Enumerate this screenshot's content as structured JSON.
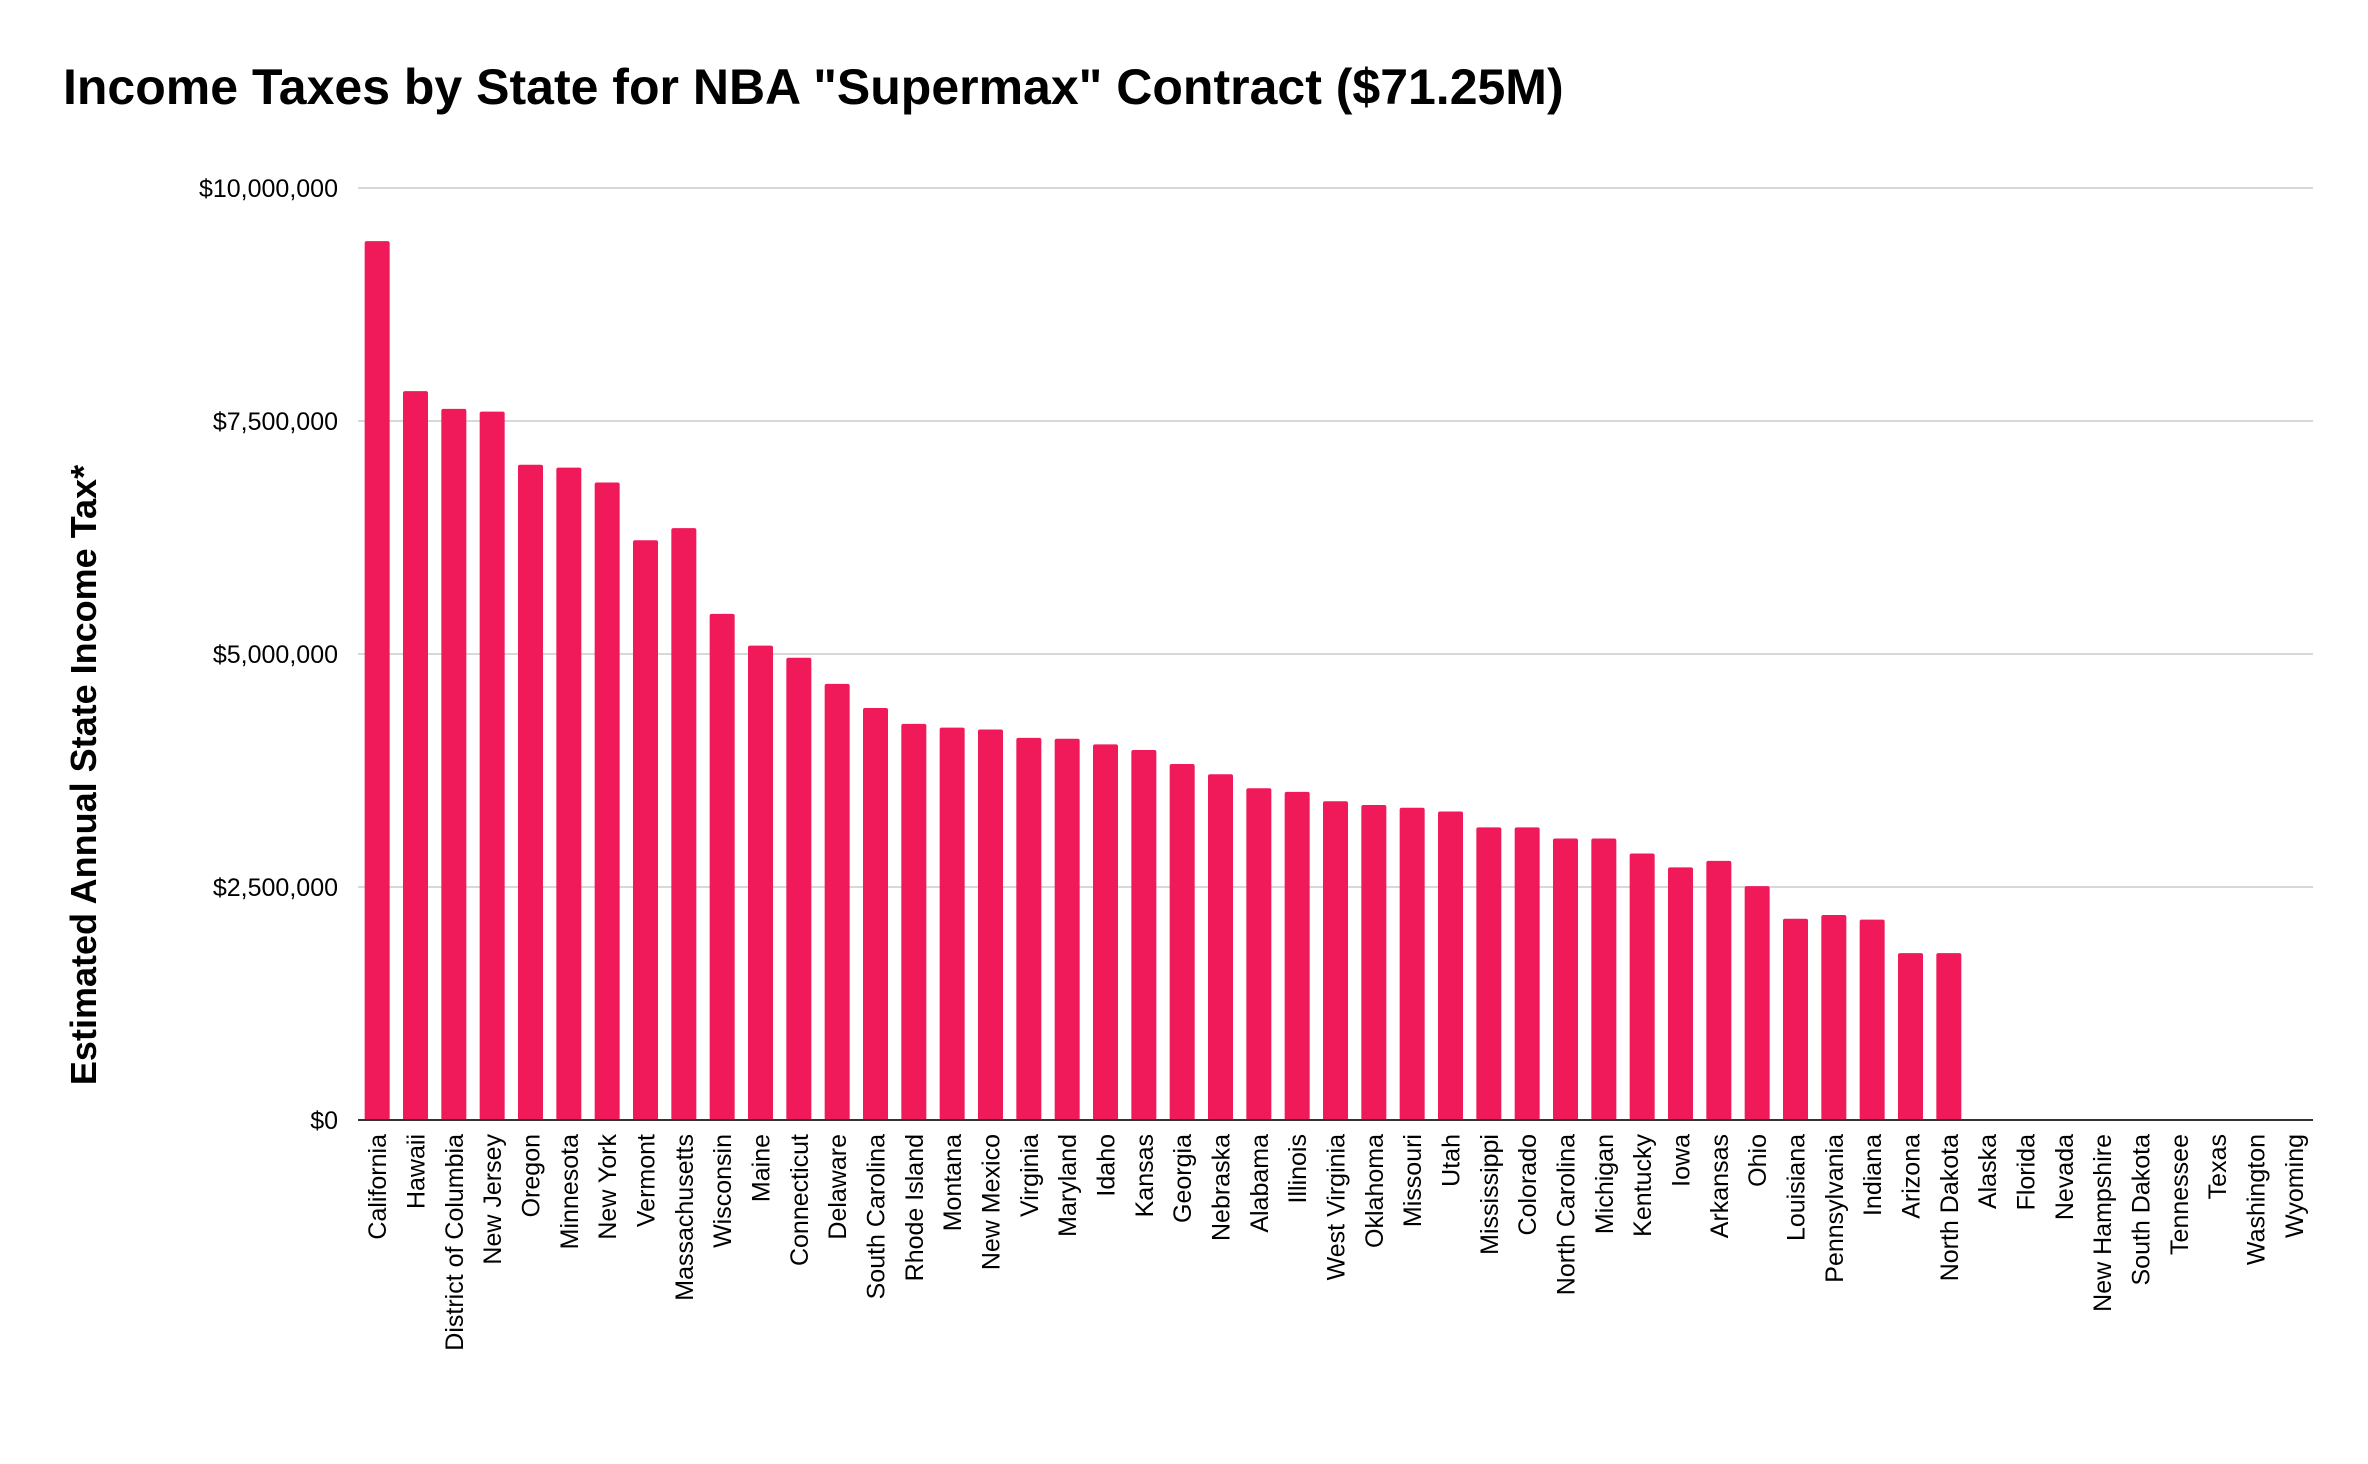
{
  "chart_data": {
    "type": "bar",
    "title": "Income Taxes by State for NBA \"Supermax\" Contract ($71.25M)",
    "xlabel": "",
    "ylabel": "Estimated Annual State Income Tax*",
    "ylim": [
      0,
      10000000
    ],
    "yticks": [
      0,
      2500000,
      5000000,
      7500000,
      10000000
    ],
    "ytick_labels": [
      "$0",
      "$2,500,000",
      "$5,000,000",
      "$7,500,000",
      "$10,000,000"
    ],
    "grid": true,
    "legend": "none",
    "bar_color": "#f0195a",
    "categories": [
      "California",
      "Hawaii",
      "District of Columbia",
      "New Jersey",
      "Oregon",
      "Minnesota",
      "New York",
      "Vermont",
      "Massachusetts",
      "Wisconsin",
      "Maine",
      "Connecticut",
      "Delaware",
      "South Carolina",
      "Rhode Island",
      "Montana",
      "New Mexico",
      "Virginia",
      "Maryland",
      "Idaho",
      "Kansas",
      "Georgia",
      "Nebraska",
      "Alabama",
      "Illinois",
      "West Virginia",
      "Oklahoma",
      "Missouri",
      "Utah",
      "Mississippi",
      "Colorado",
      "North Carolina",
      "Michigan",
      "Kentucky",
      "Iowa",
      "Arkansas",
      "Ohio",
      "Louisiana",
      "Pennsylvania",
      "Indiana",
      "Arizona",
      "North Dakota",
      "Alaska",
      "Florida",
      "Nevada",
      "New Hampshire",
      "South Dakota",
      "Tennessee",
      "Texas",
      "Washington",
      "Wyoming"
    ],
    "values": [
      9430000,
      7820000,
      7630000,
      7600000,
      7030000,
      7000000,
      6840000,
      6220000,
      6350000,
      5430000,
      5090000,
      4960000,
      4680000,
      4420000,
      4250000,
      4210000,
      4190000,
      4100000,
      4090000,
      4030000,
      3970000,
      3820000,
      3710000,
      3560000,
      3520000,
      3420000,
      3380000,
      3350000,
      3310000,
      3140000,
      3140000,
      3020000,
      3020000,
      2860000,
      2710000,
      2780000,
      2510000,
      2160000,
      2200000,
      2150000,
      1790000,
      1790000,
      0,
      0,
      0,
      0,
      0,
      0,
      0,
      0,
      0
    ]
  }
}
